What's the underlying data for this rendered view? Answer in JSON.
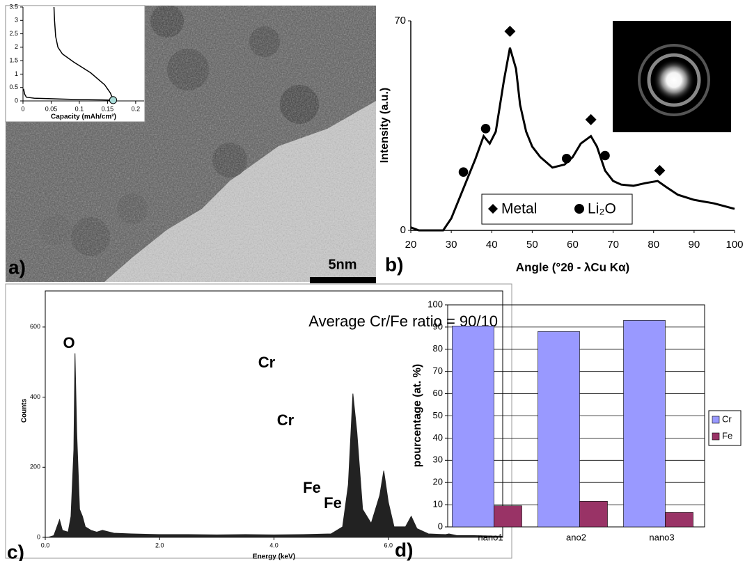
{
  "panel_labels": [
    "a)",
    "b)",
    "c)",
    "d)"
  ],
  "scale_bar": "5nm",
  "chart_data": [
    {
      "type": "line",
      "x_label": "Capacity (mAh/cm²)",
      "xlim": [
        0,
        0.215
      ],
      "ylim": [
        0,
        3.5
      ],
      "xticks": [
        0,
        0.05,
        0.1,
        0.15,
        0.2
      ],
      "yticks": [
        0,
        0.5,
        1,
        1.5,
        2,
        2.5,
        3,
        3.5
      ],
      "series": [
        {
          "color": "#000000",
          "x": [
            0.001,
            0.003,
            0.006,
            0.02,
            0.05,
            0.1,
            0.14,
            0.16
          ],
          "values": [
            0.45,
            0.25,
            0.14,
            0.1,
            0.08,
            0.05,
            0.04,
            0.03
          ]
        },
        {
          "color": "#000000",
          "x": [
            0.055,
            0.056,
            0.058,
            0.062,
            0.07,
            0.09,
            0.12,
            0.145,
            0.155,
            0.16
          ],
          "values": [
            3.5,
            3,
            2.4,
            2,
            1.75,
            1.45,
            1.05,
            0.6,
            0.3,
            0.05
          ]
        },
        {
          "color": "#a8dcd8",
          "marker": "circle",
          "x": [
            0.16
          ],
          "values": [
            0.03
          ]
        }
      ]
    },
    {
      "type": "line",
      "x_label": "Angle (°2θ - λCu Kα)",
      "y_label": "Intensity (a.u.)",
      "xlim": [
        20,
        100
      ],
      "ylim": [
        0,
        70
      ],
      "xticks": [
        20,
        30,
        40,
        50,
        60,
        70,
        80,
        90,
        100
      ],
      "yticks": [
        0,
        70
      ],
      "series": [
        {
          "color": "#000000",
          "x": [
            20,
            22,
            25,
            28,
            30,
            33,
            36,
            38,
            39.5,
            41,
            43,
            44.5,
            46,
            47,
            48.5,
            50,
            52,
            55,
            58,
            60,
            62,
            64.5,
            66,
            68,
            70,
            72,
            75,
            78,
            81,
            83,
            86,
            90,
            95,
            100
          ],
          "values": [
            1,
            0,
            0,
            0,
            4,
            14,
            24,
            31.5,
            29,
            33,
            50,
            61,
            54,
            42,
            33,
            28,
            24.5,
            21,
            22,
            24.5,
            29,
            31.5,
            28,
            20,
            16.5,
            15.3,
            14.9,
            15.8,
            16.5,
            14.6,
            11.9,
            10.2,
            9,
            7.2
          ]
        },
        {
          "name": "Metal",
          "marker": "diamond",
          "color": "#000000",
          "x": [
            44.5,
            64.5,
            81.5
          ],
          "values": [
            66.5,
            37,
            20
          ]
        },
        {
          "name": "Li₂O",
          "marker": "circle",
          "color": "#000000",
          "x": [
            33,
            38.5,
            58.5,
            68
          ],
          "values": [
            19.5,
            34,
            24,
            25
          ]
        }
      ]
    },
    {
      "type": "area",
      "x_label": "Energy (keV)",
      "y_label": "Counts",
      "annotation": "Average Cr/Fe ratio = 90/10",
      "peak_labels": [
        "O",
        "Cr",
        "Cr",
        "Fe",
        "Fe"
      ],
      "xlim": [
        0,
        8
      ],
      "ylim": [
        0,
        703
      ],
      "xticks": [
        {
          "value": 0,
          "label": "0.0"
        },
        {
          "value": 2,
          "label": "2.0"
        },
        {
          "value": 4,
          "label": "4.0"
        },
        {
          "value": 6,
          "label": "6.0"
        }
      ],
      "yticks": [
        0,
        200,
        400,
        600
      ],
      "color": "#222222",
      "x": [
        0.05,
        0.15,
        0.25,
        0.3,
        0.4,
        0.45,
        0.5,
        0.52,
        0.55,
        0.6,
        0.65,
        0.7,
        0.8,
        0.9,
        1.0,
        1.2,
        1.5,
        2.0,
        2.5,
        3.0,
        3.5,
        4.0,
        4.5,
        5.0,
        5.2,
        5.3,
        5.38,
        5.45,
        5.55,
        5.7,
        5.85,
        5.92,
        6.0,
        6.1,
        6.3,
        6.4,
        6.5,
        6.7,
        7.0,
        7.06,
        7.2,
        7.5,
        8.0
      ],
      "values": [
        0,
        5,
        50,
        20,
        15,
        60,
        250,
        525,
        300,
        80,
        60,
        30,
        20,
        15,
        20,
        12,
        10,
        8,
        8,
        7,
        8,
        7,
        8,
        10,
        30,
        150,
        410,
        300,
        80,
        40,
        120,
        190,
        100,
        30,
        30,
        60,
        25,
        10,
        8,
        10,
        5,
        5,
        3
      ]
    },
    {
      "type": "bar",
      "y_label": "pourcentage (at. %)",
      "categories": [
        "nano1",
        "ano2",
        "nano3"
      ],
      "ylim": [
        0,
        100
      ],
      "yticks": [
        0,
        10,
        20,
        30,
        40,
        50,
        60,
        70,
        80,
        90,
        100
      ],
      "grid": true,
      "series": [
        {
          "name": "Cr",
          "color": "#9999ff",
          "values": [
            90.5,
            88,
            93
          ]
        },
        {
          "name": "Fe",
          "color": "#993366",
          "values": [
            9.5,
            11.5,
            6.5
          ]
        }
      ]
    }
  ]
}
